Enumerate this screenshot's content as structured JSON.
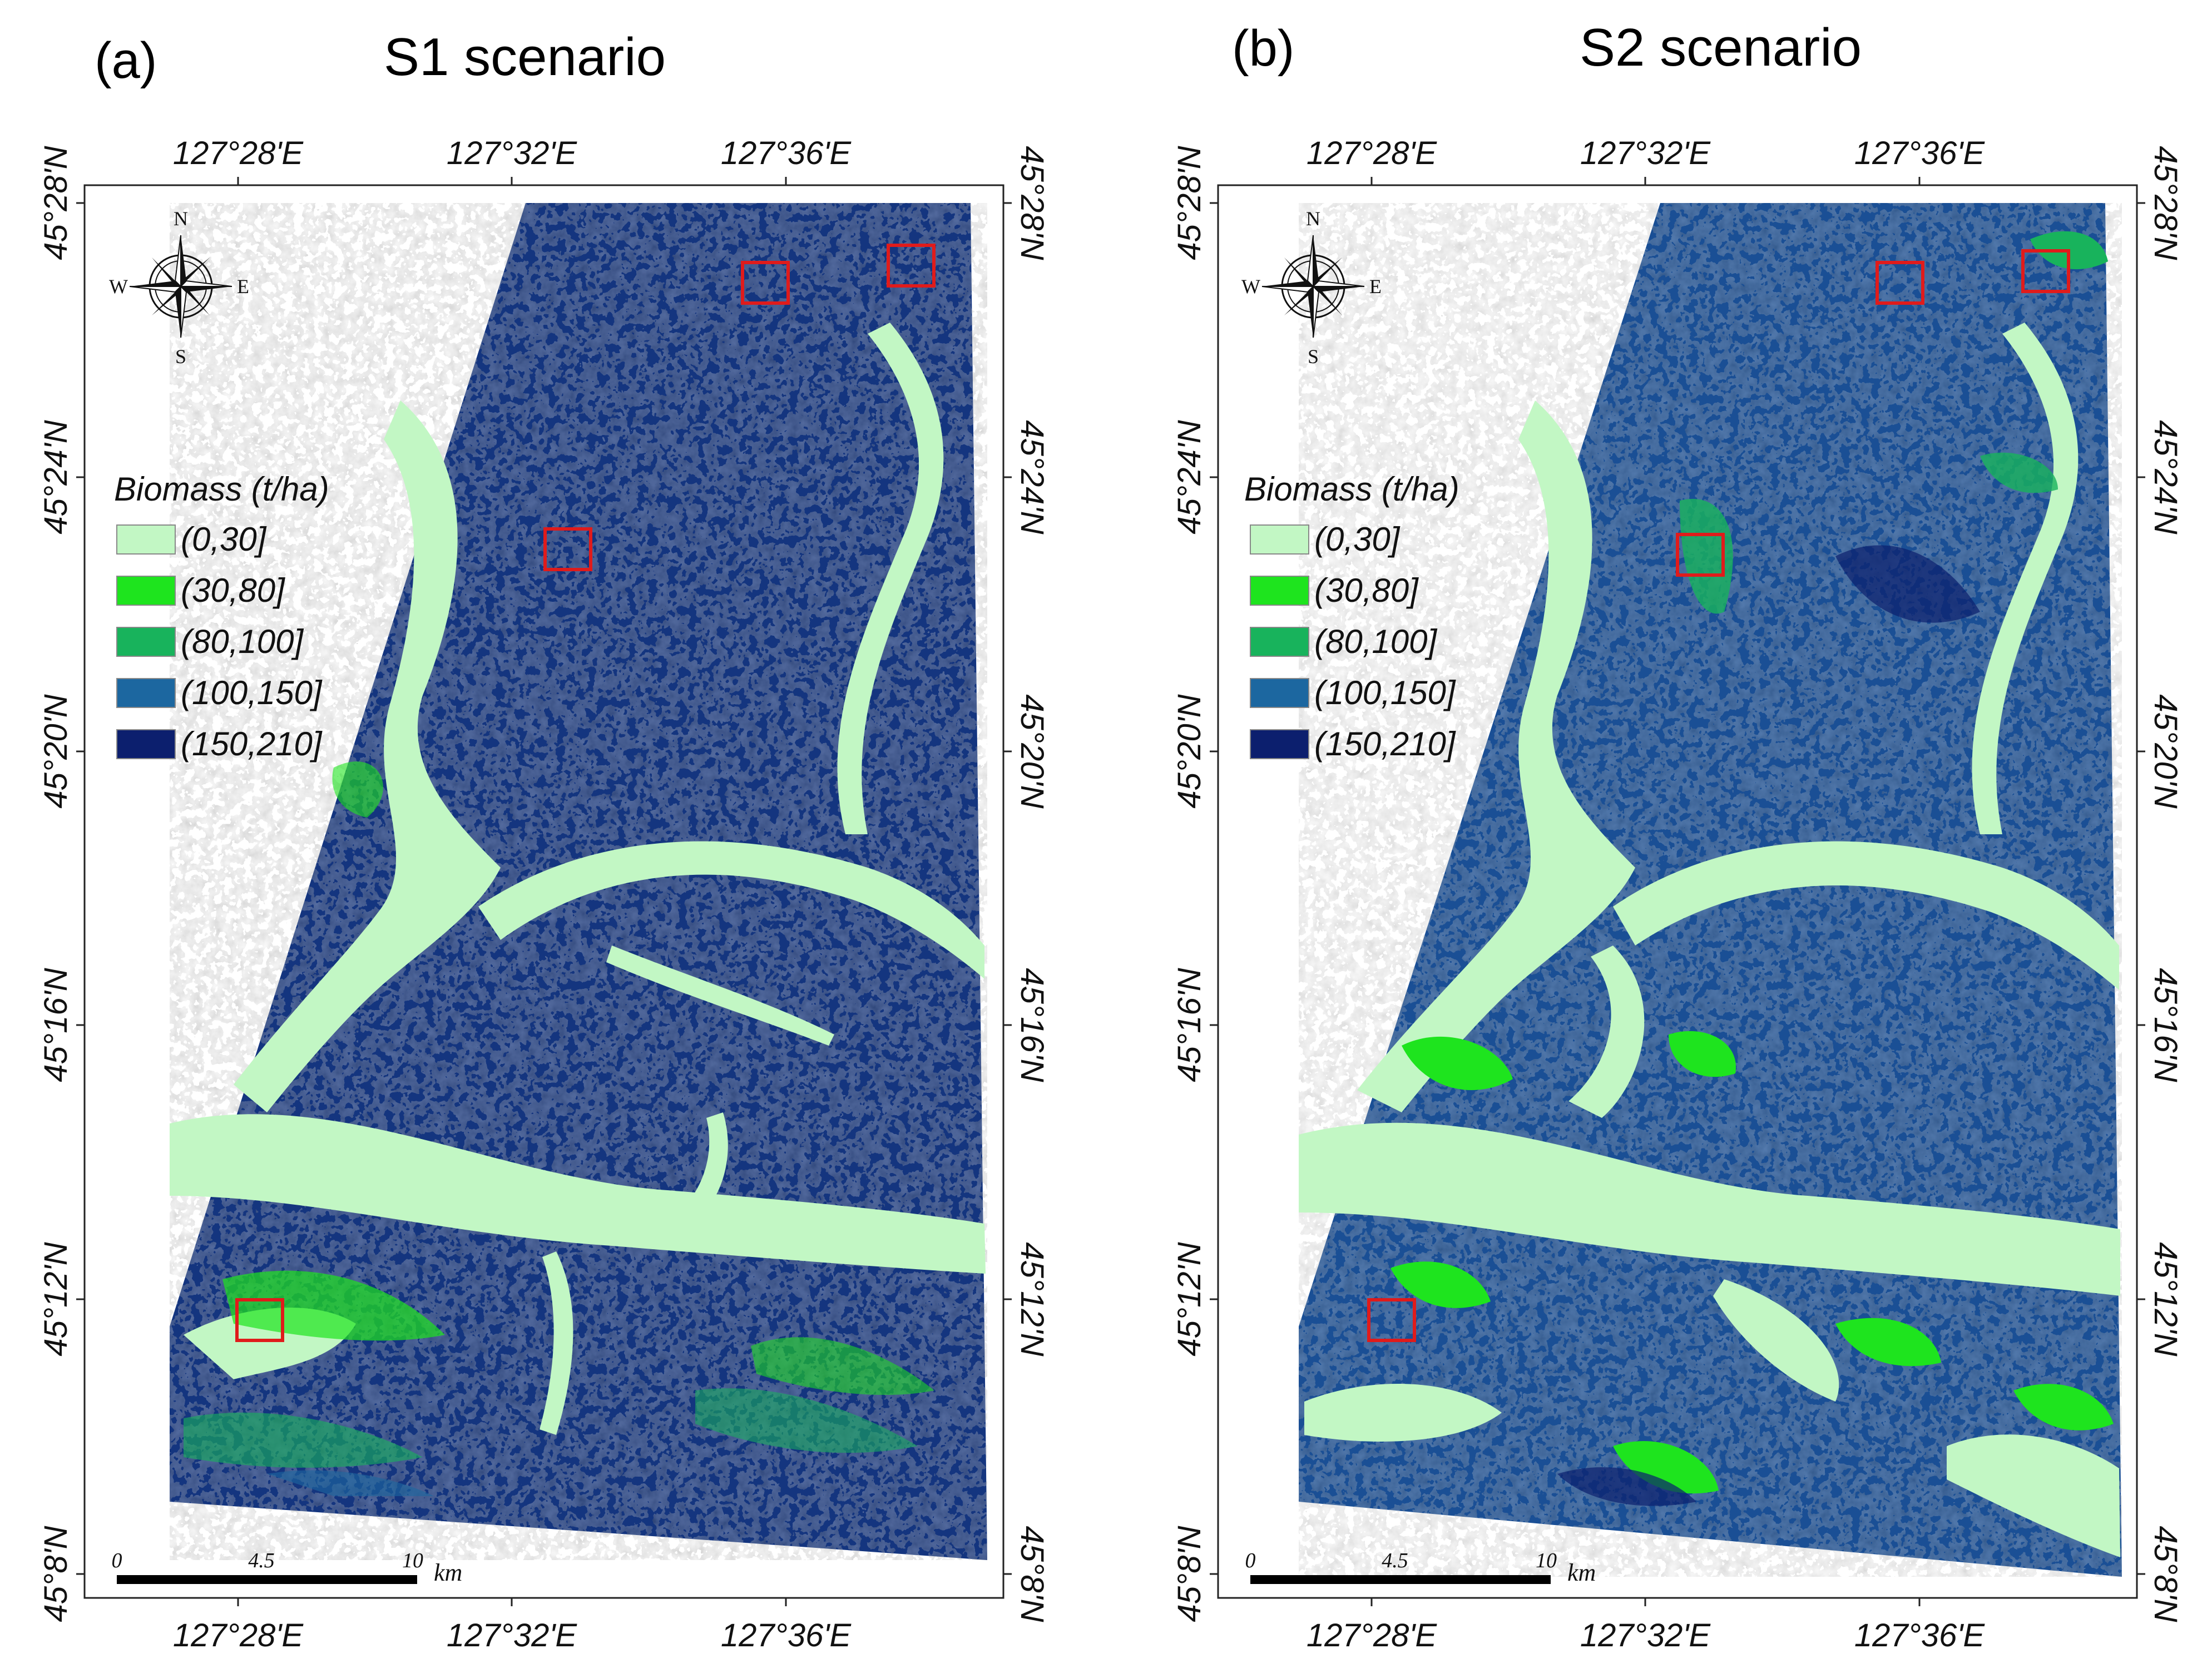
{
  "colors": {
    "class_0_30": "#c2f7c4",
    "class_30_80": "#1ee41e",
    "class_80_100": "#18b35c",
    "class_100_150": "#1c67a0",
    "class_150_210": "#0c1f6e",
    "highlight_box": "#e01b1b"
  },
  "panels": [
    {
      "letter": "(a)",
      "title": "S1 scenario",
      "top_ticks": [
        "127°28'E",
        "127°32'E",
        "127°36'E"
      ],
      "bottom_ticks": [
        "127°28'E",
        "127°32'E",
        "127°36'E"
      ],
      "left_ticks": [
        "45°28'N",
        "45°24'N",
        "45°20'N",
        "45°16'N",
        "45°12'N",
        "45°8'N"
      ],
      "right_ticks": [
        "45°28'N",
        "45°24'N",
        "45°20'N",
        "45°16'N",
        "45°12'N",
        "45°8'N"
      ],
      "compass": {
        "n": "N",
        "s": "S",
        "e": "E",
        "w": "W"
      },
      "legend": {
        "title": "Biomass (t/ha)",
        "items": [
          "(0,30]",
          "(30,80]",
          "(80,100]",
          "(100,150]",
          "(150,210]"
        ]
      },
      "scale": {
        "zero": "0",
        "mid": "4.5",
        "max": "10",
        "unit": "km"
      }
    },
    {
      "letter": "(b)",
      "title": "S2 scenario",
      "top_ticks": [
        "127°28'E",
        "127°32'E",
        "127°36'E"
      ],
      "bottom_ticks": [
        "127°28'E",
        "127°32'E",
        "127°36'E"
      ],
      "left_ticks": [
        "45°28'N",
        "45°24'N",
        "45°20'N",
        "45°16'N",
        "45°12'N",
        "45°8'N"
      ],
      "right_ticks": [
        "45°28'N",
        "45°24'N",
        "45°20'N",
        "45°16'N",
        "45°12'N",
        "45°8'N"
      ],
      "compass": {
        "n": "N",
        "s": "S",
        "e": "E",
        "w": "W"
      },
      "legend": {
        "title": "Biomass (t/ha)",
        "items": [
          "(0,30]",
          "(30,80]",
          "(80,100]",
          "(100,150]",
          "(150,210]"
        ]
      },
      "scale": {
        "zero": "0",
        "mid": "4.5",
        "max": "10",
        "unit": "km"
      }
    }
  ]
}
